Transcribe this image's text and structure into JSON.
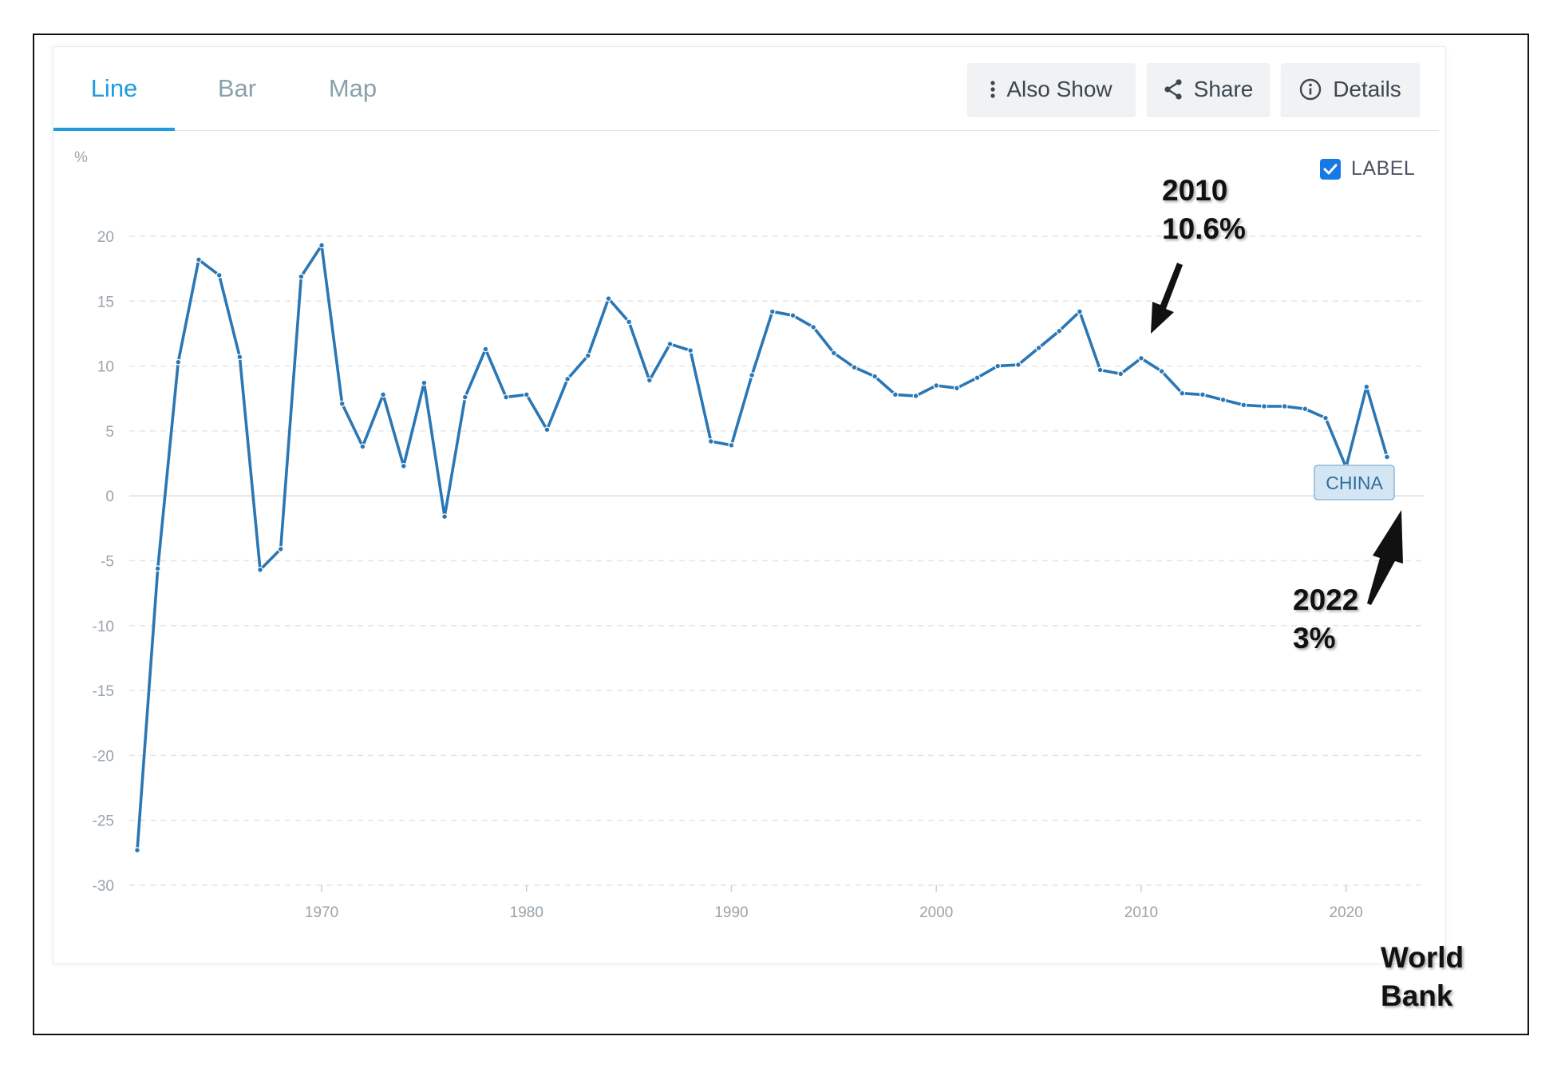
{
  "tabs": [
    {
      "label": "Line",
      "active": true
    },
    {
      "label": "Bar",
      "active": false
    },
    {
      "label": "Map",
      "active": false
    }
  ],
  "toolbar": {
    "also_show": "Also Show",
    "share": "Share",
    "details": "Details"
  },
  "label_toggle": {
    "label": "LABEL",
    "checked": true
  },
  "colors": {
    "accent": "#1f9bde",
    "series": "#2a77b5",
    "checkbox": "#1779e6"
  },
  "icons": {
    "also_show": "vertical-dots-icon",
    "share": "share-icon",
    "details": "info-icon"
  },
  "chart_data": {
    "type": "line",
    "ylabel": "%",
    "ylim": [
      -30,
      20
    ],
    "yticks": [
      20,
      15,
      10,
      5,
      0,
      -5,
      -10,
      -15,
      -20,
      -25,
      -30
    ],
    "xticks": [
      1970,
      1980,
      1990,
      2000,
      2010,
      2020
    ],
    "xlim": [
      1961,
      2022
    ],
    "grid": true,
    "series": [
      {
        "name": "CHINA",
        "x": [
          1961,
          1962,
          1963,
          1964,
          1965,
          1966,
          1967,
          1968,
          1969,
          1970,
          1971,
          1972,
          1973,
          1974,
          1975,
          1976,
          1977,
          1978,
          1979,
          1980,
          1981,
          1982,
          1983,
          1984,
          1985,
          1986,
          1987,
          1988,
          1989,
          1990,
          1991,
          1992,
          1993,
          1994,
          1995,
          1996,
          1997,
          1998,
          1999,
          2000,
          2001,
          2002,
          2003,
          2004,
          2005,
          2006,
          2007,
          2008,
          2009,
          2010,
          2011,
          2012,
          2013,
          2014,
          2015,
          2016,
          2017,
          2018,
          2019,
          2020,
          2021,
          2022
        ],
        "values": [
          -27.3,
          -5.6,
          10.3,
          18.2,
          17.0,
          10.7,
          -5.7,
          -4.1,
          16.9,
          19.3,
          7.1,
          3.8,
          7.8,
          2.3,
          8.7,
          -1.6,
          7.6,
          11.3,
          7.6,
          7.8,
          5.1,
          9.0,
          10.8,
          15.2,
          13.4,
          8.9,
          11.7,
          11.2,
          4.2,
          3.9,
          9.3,
          14.2,
          13.9,
          13.0,
          11.0,
          9.9,
          9.2,
          7.8,
          7.7,
          8.5,
          8.3,
          9.1,
          10.0,
          10.1,
          11.4,
          12.7,
          14.2,
          9.7,
          9.4,
          10.6,
          9.6,
          7.9,
          7.8,
          7.4,
          7.0,
          6.9,
          6.9,
          6.7,
          6.0,
          2.2,
          8.4,
          3.0
        ]
      }
    ],
    "annotations": [
      {
        "line1": "2010",
        "line2": "10.6%",
        "x": 2010,
        "y": 10.6
      },
      {
        "line1": "2022",
        "line2": "3%",
        "x": 2022,
        "y": 3.0
      }
    ],
    "source": [
      "World",
      "Bank"
    ]
  }
}
